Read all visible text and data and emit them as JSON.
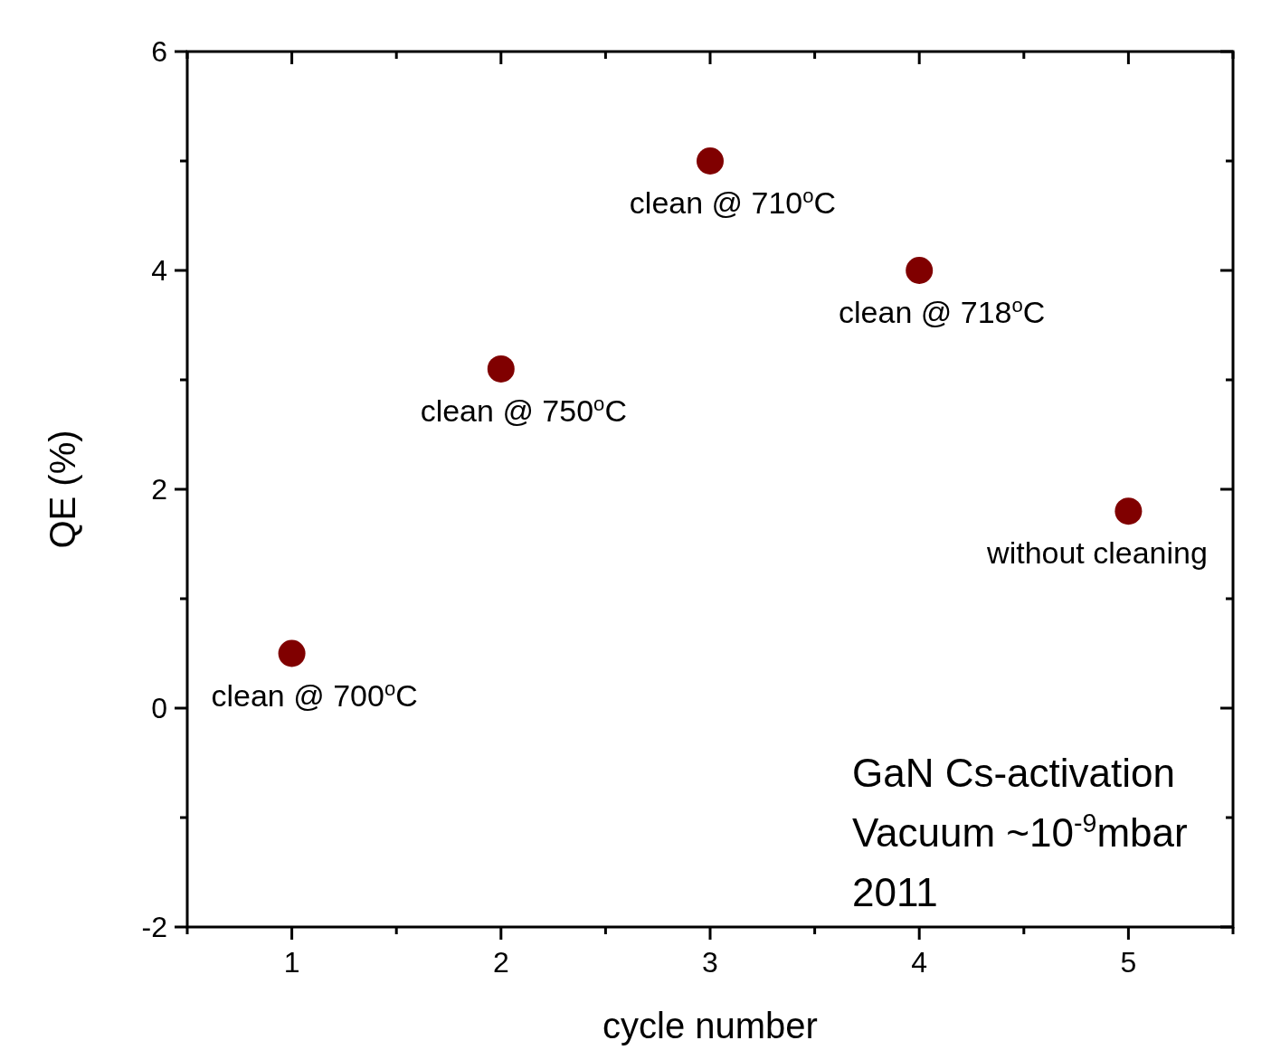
{
  "chart_data": {
    "type": "scatter",
    "xlabel": "cycle number",
    "ylabel": "QE (%)",
    "x": [
      1,
      2,
      3,
      4,
      5
    ],
    "series": [
      {
        "color": "#800000",
        "values": [
          0.5,
          3.1,
          5,
          4,
          1.8
        ]
      }
    ],
    "marker": "circle",
    "grid": false,
    "xlim": [
      0.5,
      5.5
    ],
    "ylim": [
      -2,
      6
    ],
    "xticks": [
      {
        "value": 0.5,
        "label": null
      },
      1,
      {
        "value": 1.5,
        "label": null
      },
      2,
      {
        "value": 2.5,
        "label": null
      },
      3,
      {
        "value": 3.5,
        "label": null
      },
      4,
      {
        "value": 4.5,
        "label": null
      },
      5,
      {
        "value": 5.5,
        "label": null
      }
    ],
    "yticks": [
      -2,
      {
        "value": -1,
        "label": null
      },
      0,
      {
        "value": 1,
        "label": null
      },
      2,
      {
        "value": 3,
        "label": null
      },
      4,
      {
        "value": 5,
        "label": null
      },
      6
    ],
    "annotations": [
      {
        "text": "clean @ 700$^{o}$C",
        "x": 1,
        "y": 0.5
      },
      {
        "text": "clean @ 750$^{o}$C",
        "x": 2,
        "y": 3.1
      },
      {
        "text": "clean @ 710$^{o}$C",
        "x": 3,
        "y": 5
      },
      {
        "text": "clean @ 718$^{o}$C",
        "x": 4,
        "y": 4
      },
      {
        "text": "without cleaning",
        "x": 5,
        "y": 1.8
      },
      "GaN Cs-activation",
      "Vacuum ~10$^{-9}$mbar",
      "2011"
    ]
  }
}
